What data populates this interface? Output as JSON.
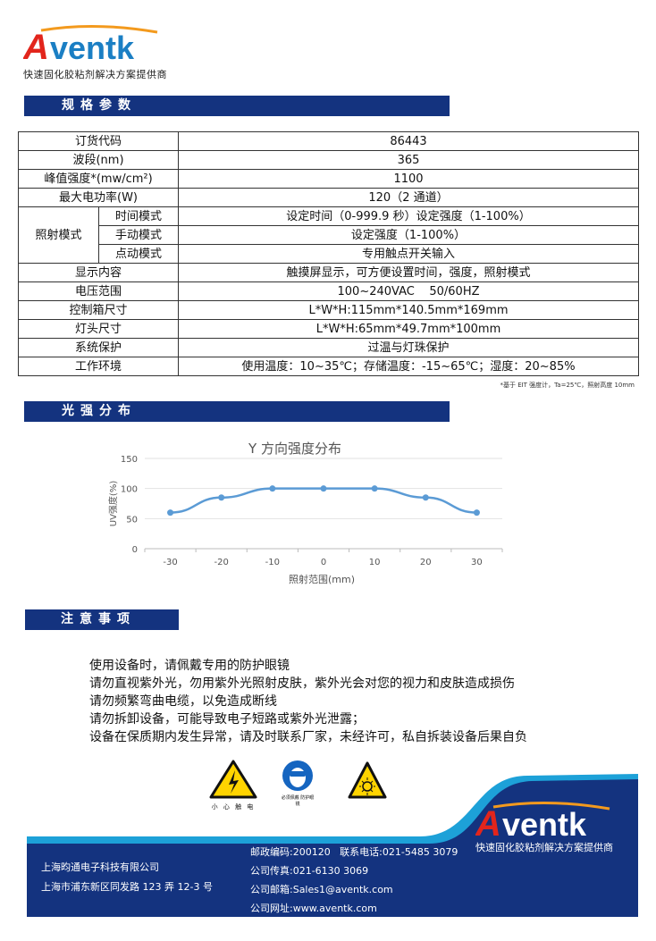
{
  "brand": {
    "logo_text": "Aventk",
    "tagline": "快速固化胶粘剂解决方案提供商",
    "primary_color": "#14337f",
    "accent_color": "#1da1d8",
    "logo_red": "#e2251c"
  },
  "sections": {
    "specs": "规格参数",
    "distribution": "光强分布",
    "notes": "注意事项"
  },
  "spec_table": {
    "rows": [
      {
        "label": "订货代码",
        "value": "86443"
      },
      {
        "label": "波段(nm)",
        "value": "365"
      },
      {
        "label": "峰值强度*(mw/cm²)",
        "value": "1100"
      },
      {
        "label": "最大电功率(W)",
        "value": "120（2 通道）"
      },
      {
        "label": "显示内容",
        "value": "触摸屏显示，可方便设置时间，强度，照射模式"
      },
      {
        "label": "电压范围",
        "value": "100~240VAC    50/60HZ"
      },
      {
        "label": "控制箱尺寸",
        "value": "L*W*H:115mm*140.5mm*169mm"
      },
      {
        "label": "灯头尺寸",
        "value": "L*W*H:65mm*49.7mm*100mm"
      },
      {
        "label": "系统保护",
        "value": "过温与灯珠保护"
      },
      {
        "label": "工作环境",
        "value": "使用温度：10~35℃；存储温度：-15~65℃；湿度：20~85%"
      }
    ],
    "mode_group": {
      "label": "照射模式",
      "items": [
        {
          "label": "时间模式",
          "value": "设定时间（0-999.9 秒）设定强度（1-100%）"
        },
        {
          "label": "手动模式",
          "value": "设定强度（1-100%）"
        },
        {
          "label": "点动模式",
          "value": "专用触点开关输入"
        }
      ]
    },
    "footnote": "*基于 EIT 强度计，Ta=25℃，照射高度 10mm"
  },
  "chart_data": {
    "type": "line",
    "title": "Y 方向强度分布",
    "xlabel": "照射范围(mm)",
    "ylabel": "UV强度(%)",
    "x": [
      -30,
      -20,
      -10,
      0,
      10,
      20,
      30
    ],
    "values": [
      60,
      85,
      100,
      100,
      100,
      85,
      60
    ],
    "ylim": [
      0,
      150
    ],
    "yticks": [
      0,
      50,
      100,
      150
    ],
    "grid": true,
    "color": "#5b9bd5"
  },
  "notes": [
    "使用设备时，请佩戴专用的防护眼镜",
    "请勿直视紫外光，勿用紫外光照射皮肤，紫外光会对您的视力和皮肤造成损伤",
    "请勿频繁弯曲电缆，以免造成断线",
    "请勿拆卸设备，可能导致电子短路或紫外光泄露；",
    "设备在保质期内发生异常，请及时联系厂家，未经许可，私自拆装设备后果自负"
  ],
  "warning_icons": [
    {
      "icon": "electric-shock-warning-icon",
      "caption": "小 心 触 电"
    },
    {
      "icon": "wear-goggles-icon",
      "caption": "必须佩戴 防护眼镜"
    },
    {
      "icon": "uv-radiation-warning-icon",
      "caption": ""
    }
  ],
  "footer": {
    "company": "上海昀通电子科技有限公司",
    "address": "上海市浦东新区同发路 123 弄 12-3 号",
    "postcode_phone": "邮政编码:200120   联系电话:021-5485 3079",
    "fax": "公司传真:021-6130 3069",
    "email": "公司邮箱:Sales1@aventk.com",
    "website": "公司网址:www.aventk.com",
    "tagline": "快速固化胶粘剂解决方案提供商",
    "logo_text": "Aventk"
  }
}
